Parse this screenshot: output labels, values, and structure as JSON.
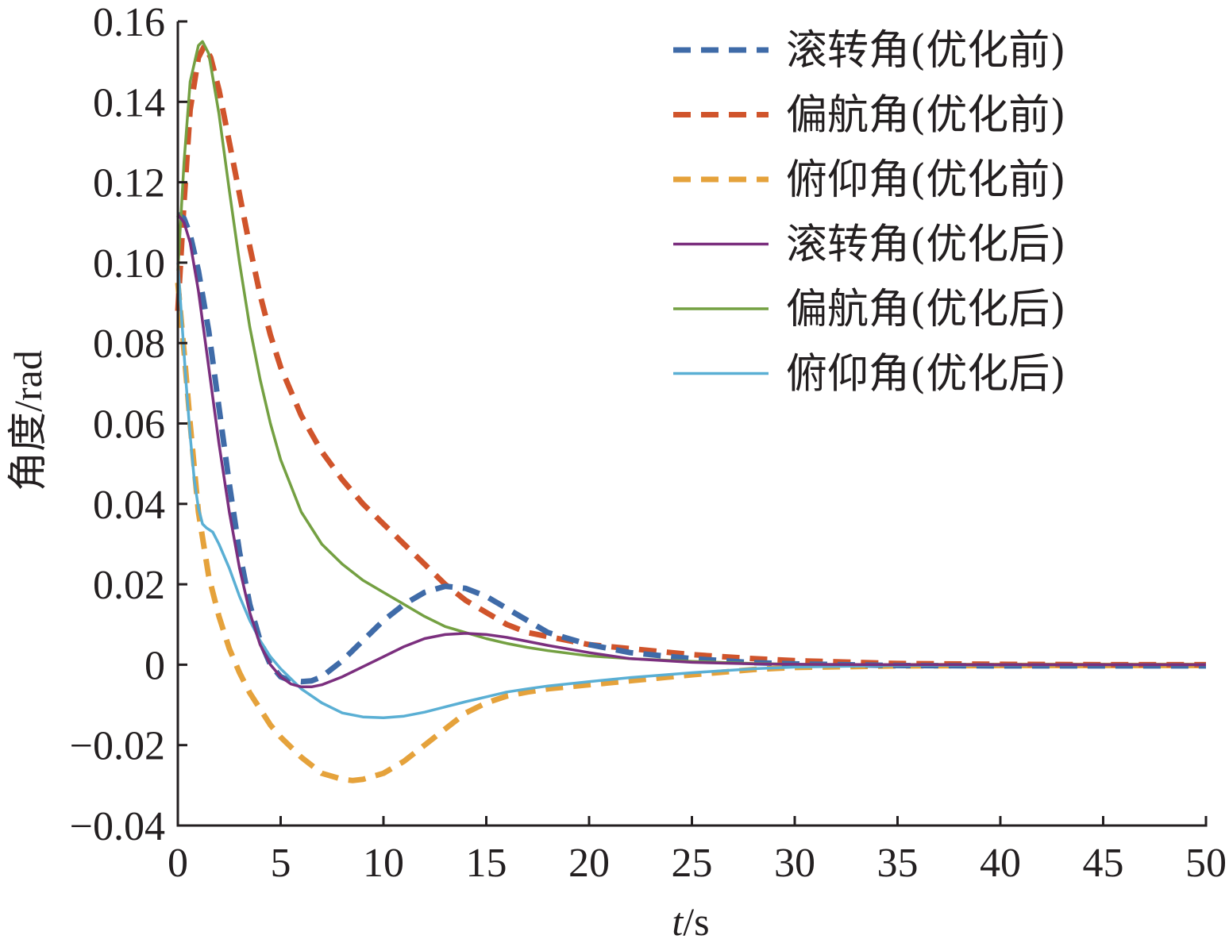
{
  "chart_data": {
    "type": "line",
    "xlabel_italic": "t",
    "xlabel_unit": "/s",
    "ylabel": "角度/rad",
    "xlim": [
      0,
      50
    ],
    "ylim": [
      -0.04,
      0.16
    ],
    "xticks": [
      0,
      5,
      10,
      15,
      20,
      25,
      30,
      35,
      40,
      45,
      50
    ],
    "xtick_labels": [
      "0",
      "5",
      "10",
      "15",
      "20",
      "25",
      "30",
      "35",
      "40",
      "45",
      "50"
    ],
    "yticks": [
      -0.04,
      -0.02,
      0,
      0.02,
      0.04,
      0.06,
      0.08,
      0.1,
      0.12,
      0.14,
      0.16
    ],
    "ytick_labels": [
      "−0.04",
      "−0.02",
      "0",
      "0.02",
      "0.04",
      "0.06",
      "0.08",
      "0.10",
      "0.12",
      "0.14",
      "0.16"
    ],
    "grid": false,
    "legend_position": "top-right",
    "series": [
      {
        "name": "滚转角(优化前)",
        "color": "#3f6ba8",
        "dashed": true,
        "x": [
          0,
          0.3,
          0.6,
          1,
          1.5,
          2,
          2.5,
          3,
          3.5,
          4,
          4.5,
          5,
          5.5,
          6,
          6.5,
          7,
          8,
          9,
          10,
          11,
          12,
          13,
          14,
          15,
          16,
          17,
          18,
          20,
          22,
          25,
          28,
          30,
          35,
          40,
          45,
          50
        ],
        "y": [
          0.112,
          0.111,
          0.107,
          0.098,
          0.083,
          0.064,
          0.045,
          0.028,
          0.015,
          0.006,
          0.0,
          -0.003,
          -0.004,
          -0.0042,
          -0.004,
          -0.003,
          0.001,
          0.006,
          0.011,
          0.015,
          0.018,
          0.0195,
          0.019,
          0.017,
          0.014,
          0.011,
          0.008,
          0.005,
          0.003,
          0.0015,
          0.0005,
          0.0002,
          -0.0002,
          -0.0003,
          -0.0003,
          -0.0003
        ]
      },
      {
        "name": "偏航角(优化前)",
        "color": "#d0542b",
        "dashed": true,
        "x": [
          0,
          0.3,
          0.6,
          1,
          1.3,
          1.6,
          2,
          2.5,
          3,
          3.5,
          4,
          4.5,
          5,
          6,
          7,
          8,
          9,
          10,
          11,
          12,
          13,
          14,
          15,
          16,
          17,
          18,
          20,
          22,
          25,
          28,
          30,
          35,
          40,
          45,
          50
        ],
        "y": [
          0.088,
          0.115,
          0.138,
          0.151,
          0.154,
          0.151,
          0.143,
          0.13,
          0.117,
          0.104,
          0.092,
          0.082,
          0.074,
          0.062,
          0.053,
          0.046,
          0.04,
          0.035,
          0.03,
          0.025,
          0.02,
          0.016,
          0.013,
          0.01,
          0.008,
          0.007,
          0.005,
          0.004,
          0.0025,
          0.0015,
          0.001,
          0.0003,
          0.0001,
          0.0,
          0.0
        ]
      },
      {
        "name": "俯仰角(优化前)",
        "color": "#e5a23b",
        "dashed": true,
        "x": [
          0,
          0.3,
          0.6,
          1,
          1.5,
          2,
          2.5,
          3,
          3.5,
          4,
          4.5,
          5,
          6,
          7,
          8,
          8.5,
          9,
          10,
          11,
          12,
          13,
          14,
          15,
          16,
          17,
          18,
          20,
          22,
          25,
          28,
          30,
          35,
          40,
          45,
          50
        ],
        "y": [
          0.095,
          0.078,
          0.06,
          0.038,
          0.022,
          0.012,
          0.004,
          -0.002,
          -0.007,
          -0.011,
          -0.015,
          -0.018,
          -0.023,
          -0.027,
          -0.0285,
          -0.0288,
          -0.0285,
          -0.027,
          -0.024,
          -0.02,
          -0.016,
          -0.012,
          -0.0095,
          -0.0078,
          -0.0068,
          -0.006,
          -0.005,
          -0.004,
          -0.0025,
          -0.0012,
          -0.0007,
          -0.0003,
          -0.0002,
          -0.0002,
          -0.0002
        ]
      },
      {
        "name": "滚转角(优化后)",
        "color": "#7b2f7e",
        "dashed": false,
        "x": [
          0,
          0.3,
          0.6,
          1,
          1.5,
          2,
          2.5,
          3,
          3.5,
          4,
          4.5,
          5,
          5.5,
          6,
          6.5,
          7,
          8,
          9,
          10,
          11,
          12,
          13,
          14,
          15,
          16,
          17,
          18,
          20,
          22,
          25,
          28,
          30,
          35,
          40,
          45,
          50
        ],
        "y": [
          0.112,
          0.11,
          0.105,
          0.093,
          0.074,
          0.055,
          0.038,
          0.024,
          0.013,
          0.005,
          0.0,
          -0.003,
          -0.0048,
          -0.0055,
          -0.0055,
          -0.005,
          -0.003,
          -0.0005,
          0.002,
          0.0045,
          0.0065,
          0.0075,
          0.0078,
          0.0075,
          0.0068,
          0.0058,
          0.0048,
          0.003,
          0.0015,
          0.0006,
          0.0002,
          0.0001,
          0.0,
          0.0,
          0.0,
          0.0
        ]
      },
      {
        "name": "偏航角(优化后)",
        "color": "#74a042",
        "dashed": false,
        "x": [
          0,
          0.3,
          0.6,
          1,
          1.2,
          1.5,
          2,
          2.5,
          3,
          3.5,
          4,
          4.5,
          5,
          6,
          7,
          8,
          9,
          10,
          11,
          12,
          13,
          14,
          15,
          16,
          17,
          18,
          20,
          22,
          25,
          28,
          30,
          35,
          40,
          45,
          50
        ],
        "y": [
          0.098,
          0.125,
          0.145,
          0.154,
          0.155,
          0.152,
          0.137,
          0.118,
          0.1,
          0.084,
          0.071,
          0.06,
          0.051,
          0.038,
          0.03,
          0.025,
          0.021,
          0.018,
          0.015,
          0.012,
          0.0095,
          0.008,
          0.0065,
          0.0053,
          0.0043,
          0.0035,
          0.0022,
          0.0015,
          0.0008,
          0.0003,
          0.0001,
          0.0,
          0.0,
          0.0,
          0.0
        ]
      },
      {
        "name": "俯仰角(优化后)",
        "color": "#5aafd4",
        "dashed": false,
        "x": [
          0,
          0.2,
          0.4,
          0.6,
          0.8,
          1,
          1.2,
          1.4,
          1.7,
          2,
          2.5,
          3,
          3.5,
          4,
          4.5,
          5,
          6,
          7,
          8,
          9,
          10,
          11,
          12,
          13,
          14,
          15,
          16,
          17,
          18,
          20,
          22,
          25,
          28,
          30,
          35,
          40,
          45,
          50
        ],
        "y": [
          0.1,
          0.085,
          0.07,
          0.057,
          0.046,
          0.039,
          0.035,
          0.034,
          0.033,
          0.03,
          0.024,
          0.017,
          0.011,
          0.006,
          0.002,
          -0.001,
          -0.006,
          -0.0095,
          -0.012,
          -0.013,
          -0.0132,
          -0.0128,
          -0.0118,
          -0.0105,
          -0.0092,
          -0.008,
          -0.0068,
          -0.006,
          -0.0053,
          -0.0042,
          -0.0032,
          -0.002,
          -0.001,
          -0.0006,
          -0.0002,
          -0.0001,
          0.0,
          0.0
        ]
      }
    ]
  }
}
